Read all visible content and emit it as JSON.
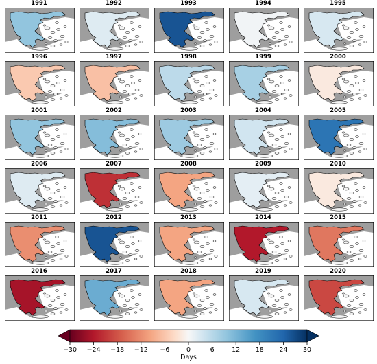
{
  "chart_data": {
    "type": "heatmap",
    "title": "",
    "years": [
      "1991",
      "1992",
      "1993",
      "1994",
      "1995",
      "1996",
      "1997",
      "1998",
      "1999",
      "2000",
      "2001",
      "2002",
      "2003",
      "2004",
      "2005",
      "2006",
      "2007",
      "2008",
      "2009",
      "2010",
      "2011",
      "2012",
      "2013",
      "2014",
      "2015",
      "2016",
      "2017",
      "2018",
      "2019",
      "2020"
    ],
    "panel_anomaly_days": [
      12,
      4,
      26,
      1,
      5,
      -8,
      -9,
      8,
      10,
      -3,
      12,
      13,
      11,
      6,
      22,
      4,
      -22,
      -12,
      3,
      -3,
      -14,
      26,
      -12,
      -24,
      -16,
      -25,
      15,
      -12,
      5,
      -20
    ],
    "colorbar": {
      "label": "Days",
      "range": [
        -30,
        30
      ],
      "ticks": [
        "−30",
        "−24",
        "−18",
        "−12",
        "−6",
        "0",
        "6",
        "12",
        "18",
        "24",
        "30"
      ],
      "tick_values": [
        -30,
        -24,
        -18,
        -12,
        -6,
        0,
        6,
        12,
        18,
        24,
        30
      ],
      "extend": "both",
      "colormap": "RdBu"
    },
    "colors": {
      "land_background": "#9e9e9e",
      "sea": "#ffffff",
      "outline": "#000000"
    }
  }
}
